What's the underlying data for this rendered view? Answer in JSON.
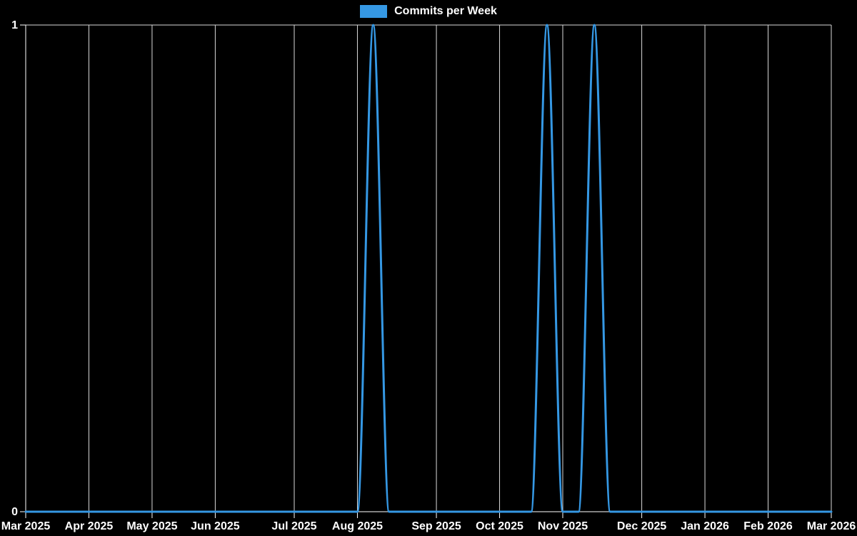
{
  "legend": {
    "label": "Commits per Week"
  },
  "colors": {
    "background": "#000000",
    "line": "#3598e4",
    "axis": "#ffffff",
    "grid": "#d9d9d9",
    "text": "#ffffff"
  },
  "chart_data": {
    "type": "line",
    "title": "",
    "legend_position": "top",
    "grid": "vertical-monthly",
    "x_unit": "week",
    "point_count": 52,
    "ylim": [
      0,
      1
    ],
    "y_ticks": [
      {
        "value": 0,
        "label": "0"
      },
      {
        "value": 1,
        "label": "1"
      }
    ],
    "x_ticks": [
      {
        "week": 0,
        "label": "Mar 2025"
      },
      {
        "week": 4,
        "label": "Apr 2025"
      },
      {
        "week": 8,
        "label": "May 2025"
      },
      {
        "week": 12,
        "label": "Jun 2025"
      },
      {
        "week": 17,
        "label": "Jul 2025"
      },
      {
        "week": 21,
        "label": "Aug 2025"
      },
      {
        "week": 26,
        "label": "Sep 2025"
      },
      {
        "week": 30,
        "label": "Oct 2025"
      },
      {
        "week": 34,
        "label": "Nov 2025"
      },
      {
        "week": 39,
        "label": "Dec 2025"
      },
      {
        "week": 43,
        "label": "Jan 2026"
      },
      {
        "week": 47,
        "label": "Feb 2026"
      },
      {
        "week": 51,
        "label": "Mar 2026"
      }
    ],
    "series": [
      {
        "name": "Commits per Week",
        "values": [
          0,
          0,
          0,
          0,
          0,
          0,
          0,
          0,
          0,
          0,
          0,
          0,
          0,
          0,
          0,
          0,
          0,
          0,
          0,
          0,
          0,
          0,
          1,
          0,
          0,
          0,
          0,
          0,
          0,
          0,
          0,
          0,
          0,
          1,
          0,
          0,
          1,
          0,
          0,
          0,
          0,
          0,
          0,
          0,
          0,
          0,
          0,
          0,
          0,
          0,
          0,
          0
        ]
      }
    ]
  }
}
